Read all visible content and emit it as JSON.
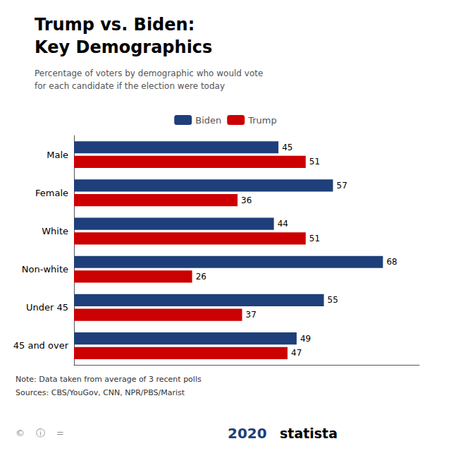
{
  "chart_data": {
    "type": "bar",
    "orientation": "horizontal",
    "title": "Trump vs. Biden:\nKey Demographics",
    "subtitle": "Percentage of voters by demographic who would vote\nfor each candidate if the election were today",
    "categories": [
      "Male",
      "Female",
      "White",
      "Non-white",
      "Under 45",
      "45 and over"
    ],
    "series": [
      {
        "name": "Biden",
        "color": "#1e3f7a",
        "values": [
          45,
          57,
          44,
          68,
          55,
          49
        ]
      },
      {
        "name": "Trump",
        "color": "#cc0000",
        "values": [
          51,
          36,
          51,
          26,
          37,
          47
        ]
      }
    ],
    "xlim": [
      0,
      76
    ],
    "tick_labels": "y",
    "grid": false,
    "legend": "top",
    "data_labels": true,
    "annotations": [
      "Note: Data taken from average of 3 recent polls",
      "Sources: CBS/YouGov, CNN, NPR/PBS/Marist",
      "2020",
      "statista",
      "©",
      "ⓘ",
      "="
    ]
  }
}
